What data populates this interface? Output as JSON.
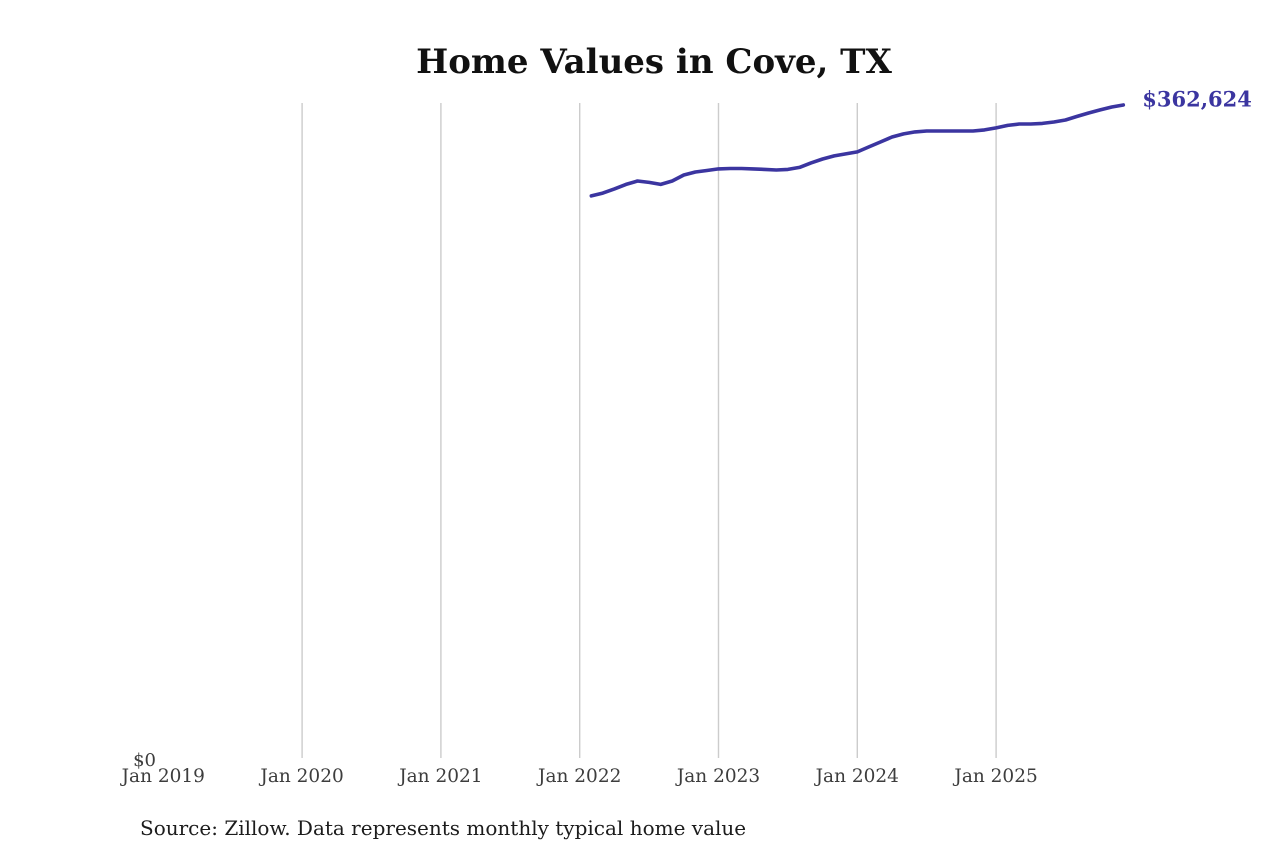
{
  "title": "Home Values in Cove, TX",
  "annotations": {
    "end_value_label": "$362,624",
    "y_axis_zero_label": "$0"
  },
  "source_note": "Source: Zillow. Data represents monthly typical home value",
  "colors": {
    "line": "#3b35a0",
    "end_label": "#3b35a0",
    "grid": "#cccccc",
    "axis_text": "#3d3d3d",
    "title_text": "#111111",
    "source_text": "#1c1c1c",
    "background": "#ffffff"
  },
  "chart_data": {
    "type": "line",
    "title": "Home Values in Cove, TX",
    "xlabel": "",
    "ylabel": "",
    "x_tick_labels": [
      "Jan 2019",
      "Jan 2020",
      "Jan 2021",
      "Jan 2022",
      "Jan 2023",
      "Jan 2024",
      "Jan 2025"
    ],
    "y_tick_labels": [
      "$0"
    ],
    "ylim": [
      0,
      364000
    ],
    "grid": "vertical gridlines at each January; no gridline at Jan 2019; no axis lines",
    "legend_position": "none",
    "series": [
      {
        "name": "Monthly typical home value",
        "months": [
          "2022-02",
          "2022-03",
          "2022-04",
          "2022-05",
          "2022-06",
          "2022-07",
          "2022-08",
          "2022-09",
          "2022-10",
          "2022-11",
          "2022-12",
          "2023-01",
          "2023-02",
          "2023-03",
          "2023-04",
          "2023-05",
          "2023-06",
          "2023-07",
          "2023-08",
          "2023-09",
          "2023-10",
          "2023-11",
          "2023-12",
          "2024-01",
          "2024-02",
          "2024-03",
          "2024-04",
          "2024-05",
          "2024-06",
          "2024-07",
          "2024-08",
          "2024-09",
          "2024-10",
          "2024-11",
          "2024-12",
          "2025-01",
          "2025-02",
          "2025-03",
          "2025-04",
          "2025-05",
          "2025-06",
          "2025-07",
          "2025-08",
          "2025-09",
          "2025-10",
          "2025-11",
          "2025-12"
        ],
        "values": [
          312200,
          313800,
          316100,
          318600,
          320500,
          319700,
          318600,
          320500,
          323800,
          325500,
          326300,
          327200,
          327400,
          327400,
          327200,
          326900,
          326600,
          326900,
          328000,
          330500,
          332700,
          334400,
          335500,
          336600,
          339400,
          342100,
          344900,
          346600,
          347700,
          348200,
          348200,
          348200,
          348200,
          348200,
          348800,
          349900,
          351300,
          352100,
          352100,
          352400,
          353200,
          354300,
          356300,
          358200,
          359900,
          361500,
          362624
        ],
        "final_value": 362624,
        "final_value_label": "$362,624"
      }
    ]
  }
}
